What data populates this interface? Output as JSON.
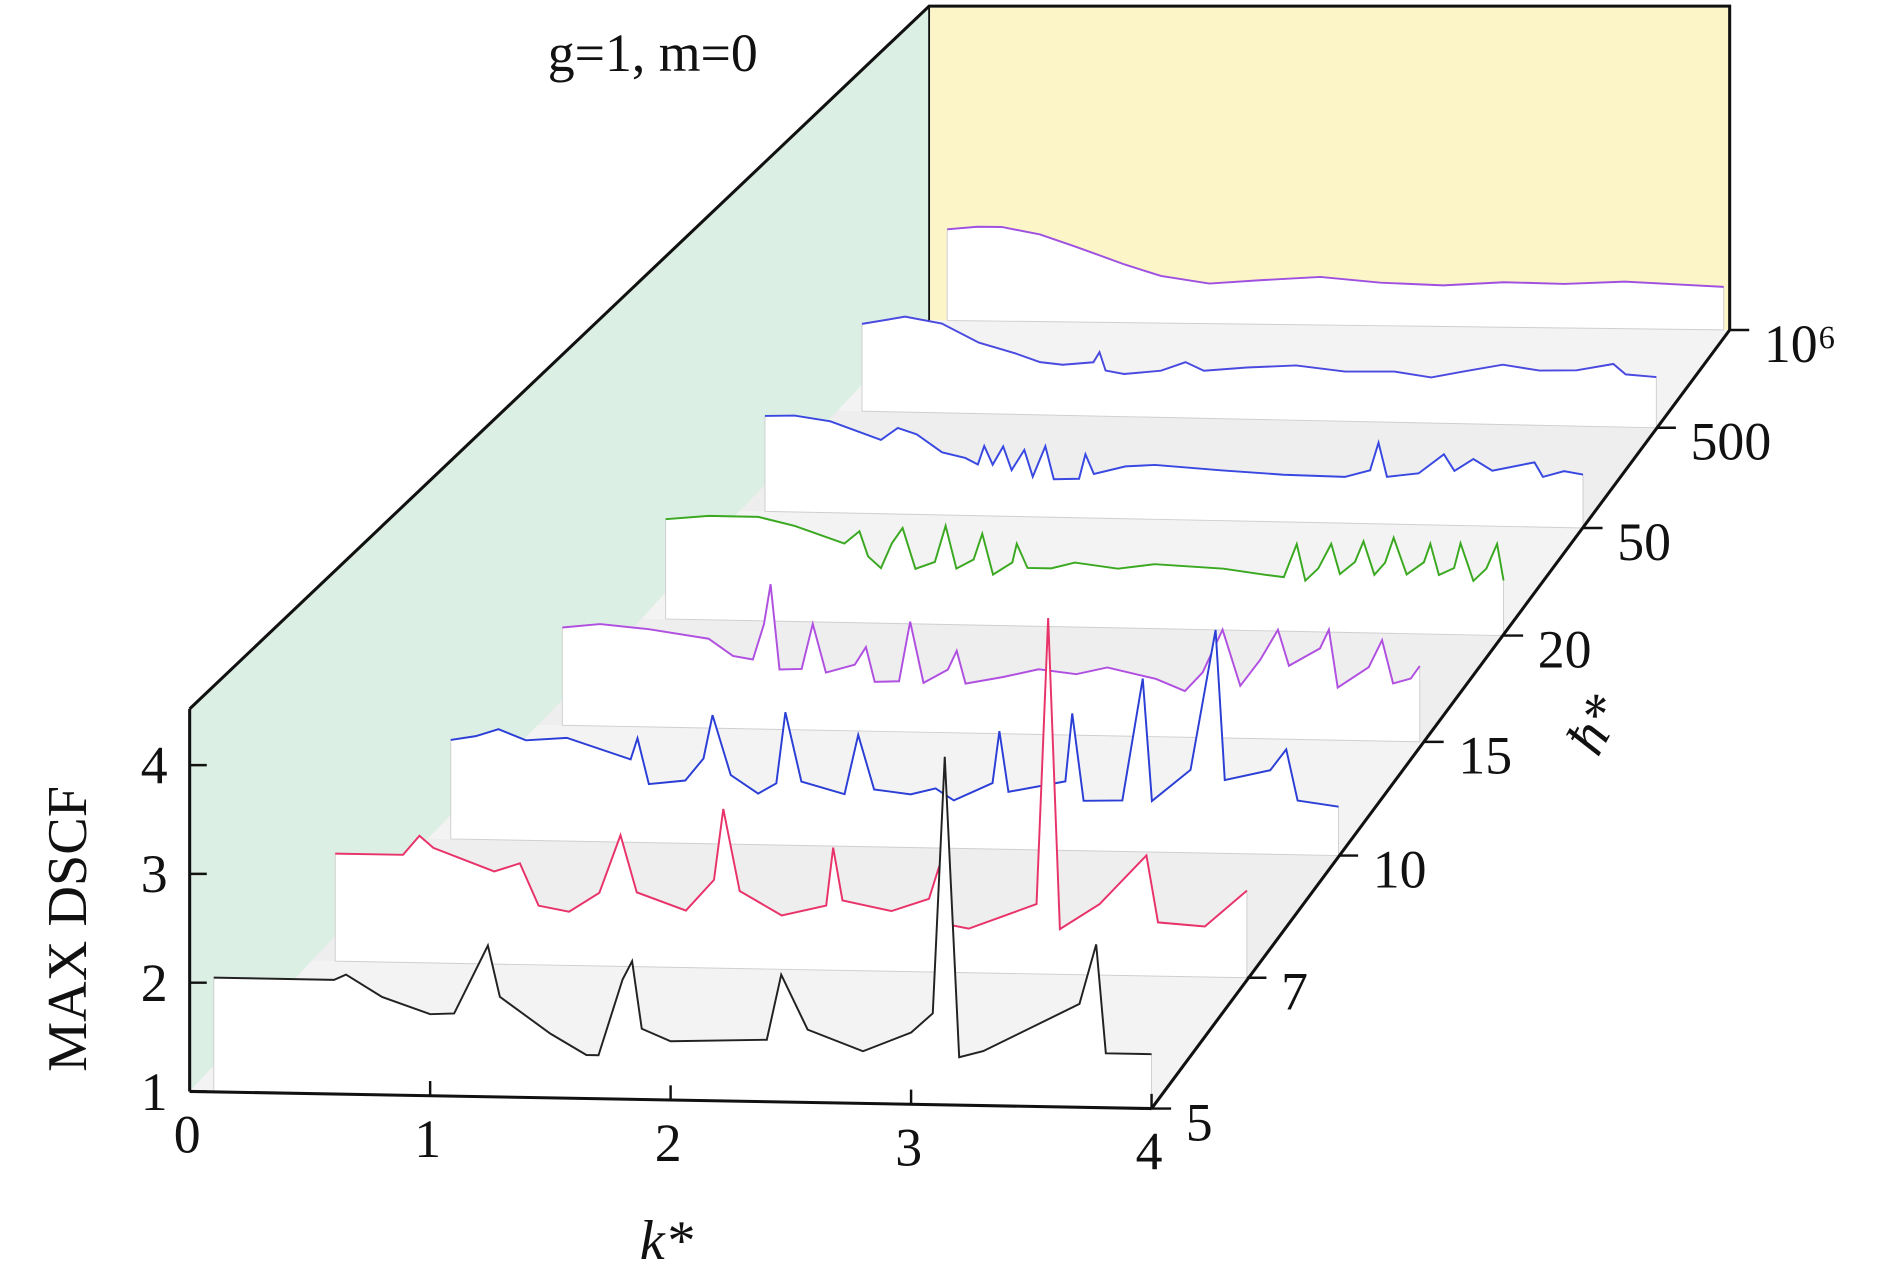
{
  "chart_data": {
    "type": "line",
    "title": "g=1, m=0",
    "xlabel": "k*",
    "ylabel": "MAX DSCF",
    "zlabel": "ħ*",
    "xlim": [
      0,
      4
    ],
    "xticks": [
      0,
      1,
      2,
      3,
      4
    ],
    "ylim": [
      1,
      4.5
    ],
    "yticks": [
      1,
      2,
      3,
      4
    ],
    "zticks": [
      5,
      7,
      10,
      15,
      20,
      50,
      500,
      {
        "value": 1000000,
        "label": "10⁶"
      }
    ],
    "series": [
      {
        "color": "#222222",
        "x": [
          0.1,
          0.6,
          0.65,
          0.8,
          1.0,
          1.1,
          1.24,
          1.29,
          1.5,
          1.65,
          1.7,
          1.8,
          1.84,
          1.88,
          2.0,
          2.4,
          2.46,
          2.57,
          2.8,
          3.0,
          3.09,
          3.14,
          3.2,
          3.3,
          3.7,
          3.77,
          3.81,
          4.0
        ],
        "values": [
          2.05,
          2.05,
          2.1,
          1.9,
          1.75,
          1.76,
          2.39,
          1.92,
          1.59,
          1.4,
          1.4,
          2.1,
          2.27,
          1.65,
          1.54,
          1.57,
          2.17,
          1.67,
          1.48,
          1.66,
          1.84,
          4.2,
          1.44,
          1.5,
          1.95,
          2.5,
          1.5,
          1.5
        ]
      },
      {
        "color": "#e8336a",
        "x": [
          0.1,
          0.39,
          0.46,
          0.52,
          0.78,
          0.89,
          0.97,
          1.1,
          1.23,
          1.32,
          1.39,
          1.6,
          1.72,
          1.76,
          1.83,
          2.01,
          2.2,
          2.23,
          2.27,
          2.48,
          2.64,
          2.68,
          2.73,
          2.81,
          3.1,
          3.15,
          3.2,
          3.37,
          3.57,
          3.62,
          3.82,
          4.0
        ],
        "values": [
          2.0,
          2.0,
          2.18,
          2.07,
          1.86,
          1.94,
          1.55,
          1.5,
          1.68,
          2.22,
          1.69,
          1.53,
          1.82,
          2.48,
          1.72,
          1.5,
          1.6,
          2.14,
          1.65,
          1.56,
          1.68,
          1.96,
          1.44,
          1.41,
          1.65,
          4.31,
          1.42,
          1.66,
          2.12,
          1.5,
          1.47,
          1.81
        ]
      },
      {
        "color": "#2b3fd6",
        "x": [
          0.1,
          0.21,
          0.31,
          0.43,
          0.61,
          0.89,
          0.92,
          0.97,
          1.13,
          1.21,
          1.25,
          1.33,
          1.45,
          1.53,
          1.57,
          1.64,
          1.83,
          1.89,
          1.96,
          2.12,
          2.23,
          2.31,
          2.48,
          2.51,
          2.55,
          2.8,
          2.83,
          2.88,
          3.05,
          3.14,
          3.18,
          3.35,
          3.46,
          3.5,
          3.7,
          3.77,
          3.82,
          4.0
        ],
        "values": [
          1.93,
          1.97,
          2.04,
          1.94,
          1.97,
          1.78,
          1.98,
          1.55,
          1.59,
          1.8,
          2.21,
          1.65,
          1.48,
          1.58,
          2.25,
          1.6,
          1.49,
          2.05,
          1.54,
          1.5,
          1.56,
          1.45,
          1.62,
          2.11,
          1.54,
          1.65,
          2.29,
          1.47,
          1.48,
          2.63,
          1.48,
          1.78,
          3.1,
          1.69,
          1.79,
          1.99,
          1.51,
          1.46
        ]
      },
      {
        "color": "#b050e0",
        "x": [
          0.11,
          0.28,
          0.5,
          0.77,
          0.88,
          0.97,
          1.02,
          1.05,
          1.09,
          1.19,
          1.24,
          1.3,
          1.43,
          1.48,
          1.52,
          1.63,
          1.68,
          1.74,
          1.85,
          1.89,
          1.93,
          2.1,
          2.26,
          2.43,
          2.57,
          2.79,
          2.92,
          3.0,
          3.09,
          3.17,
          3.26,
          3.34,
          3.39,
          3.53,
          3.57,
          3.61,
          3.75,
          3.81,
          3.86,
          3.94,
          3.98
        ],
        "values": [
          1.93,
          1.97,
          1.93,
          1.85,
          1.69,
          1.66,
          2.0,
          2.38,
          1.57,
          1.58,
          2.01,
          1.55,
          1.63,
          1.8,
          1.47,
          1.48,
          2.05,
          1.47,
          1.6,
          1.78,
          1.47,
          1.54,
          1.62,
          1.58,
          1.65,
          1.55,
          1.44,
          1.62,
          2.03,
          1.5,
          1.75,
          2.04,
          1.7,
          1.87,
          2.05,
          1.5,
          1.7,
          1.96,
          1.55,
          1.6,
          1.72
        ]
      },
      {
        "color": "#3aa820",
        "x": [
          0.11,
          0.31,
          0.54,
          0.71,
          0.94,
          1.01,
          1.05,
          1.11,
          1.16,
          1.21,
          1.27,
          1.36,
          1.41,
          1.46,
          1.54,
          1.58,
          1.63,
          1.72,
          1.74,
          1.79,
          1.9,
          2.01,
          2.21,
          2.38,
          2.7,
          2.89,
          2.98,
          3.04,
          3.08,
          3.14,
          3.2,
          3.24,
          3.31,
          3.35,
          3.4,
          3.45,
          3.49,
          3.55,
          3.63,
          3.66,
          3.7,
          3.77,
          3.8,
          3.86,
          3.92,
          3.97,
          4.0
        ],
        "values": [
          1.96,
          2.0,
          2.0,
          1.92,
          1.76,
          1.88,
          1.64,
          1.53,
          1.77,
          1.92,
          1.53,
          1.6,
          1.95,
          1.54,
          1.63,
          1.88,
          1.49,
          1.61,
          1.79,
          1.56,
          1.56,
          1.62,
          1.57,
          1.62,
          1.59,
          1.54,
          1.52,
          1.84,
          1.49,
          1.61,
          1.85,
          1.56,
          1.68,
          1.88,
          1.56,
          1.68,
          1.92,
          1.57,
          1.69,
          1.87,
          1.57,
          1.64,
          1.88,
          1.52,
          1.64,
          1.88,
          1.53
        ]
      },
      {
        "color": "#3848e0",
        "x": [
          0.12,
          0.26,
          0.43,
          0.67,
          0.75,
          0.84,
          0.96,
          1.07,
          1.13,
          1.16,
          1.2,
          1.25,
          1.29,
          1.35,
          1.39,
          1.45,
          1.49,
          1.61,
          1.64,
          1.68,
          1.83,
          1.97,
          2.29,
          2.58,
          2.87,
          2.99,
          3.03,
          3.07,
          3.22,
          3.34,
          3.39,
          3.48,
          3.57,
          3.77,
          3.81,
          3.91,
          4.0
        ],
        "values": [
          1.93,
          1.94,
          1.89,
          1.72,
          1.84,
          1.78,
          1.61,
          1.56,
          1.5,
          1.68,
          1.5,
          1.68,
          1.45,
          1.65,
          1.39,
          1.69,
          1.37,
          1.38,
          1.62,
          1.43,
          1.51,
          1.53,
          1.49,
          1.46,
          1.45,
          1.52,
          1.79,
          1.46,
          1.5,
          1.69,
          1.53,
          1.65,
          1.54,
          1.63,
          1.49,
          1.55,
          1.52
        ]
      },
      {
        "color": "#4a4ae0",
        "x": [
          0.12,
          0.33,
          0.51,
          0.69,
          0.87,
          0.99,
          1.1,
          1.25,
          1.28,
          1.31,
          1.4,
          1.58,
          1.7,
          1.79,
          2.0,
          2.24,
          2.48,
          2.72,
          2.9,
          3.07,
          3.25,
          3.43,
          3.61,
          3.79,
          3.85,
          4.0
        ],
        "values": [
          1.86,
          1.94,
          1.88,
          1.7,
          1.6,
          1.52,
          1.5,
          1.53,
          1.63,
          1.45,
          1.42,
          1.46,
          1.55,
          1.47,
          1.51,
          1.54,
          1.49,
          1.5,
          1.45,
          1.52,
          1.59,
          1.54,
          1.55,
          1.62,
          1.52,
          1.5
        ]
      },
      {
        "color": "#a050e0",
        "x": [
          0.12,
          0.27,
          0.39,
          0.58,
          0.76,
          1.0,
          1.18,
          1.42,
          1.67,
          1.97,
          2.27,
          2.58,
          2.88,
          3.18,
          3.48,
          3.73,
          3.97
        ],
        "values": [
          1.91,
          1.94,
          1.94,
          1.87,
          1.75,
          1.58,
          1.47,
          1.4,
          1.44,
          1.48,
          1.43,
          1.41,
          1.45,
          1.44,
          1.47,
          1.45,
          1.43
        ]
      }
    ]
  }
}
